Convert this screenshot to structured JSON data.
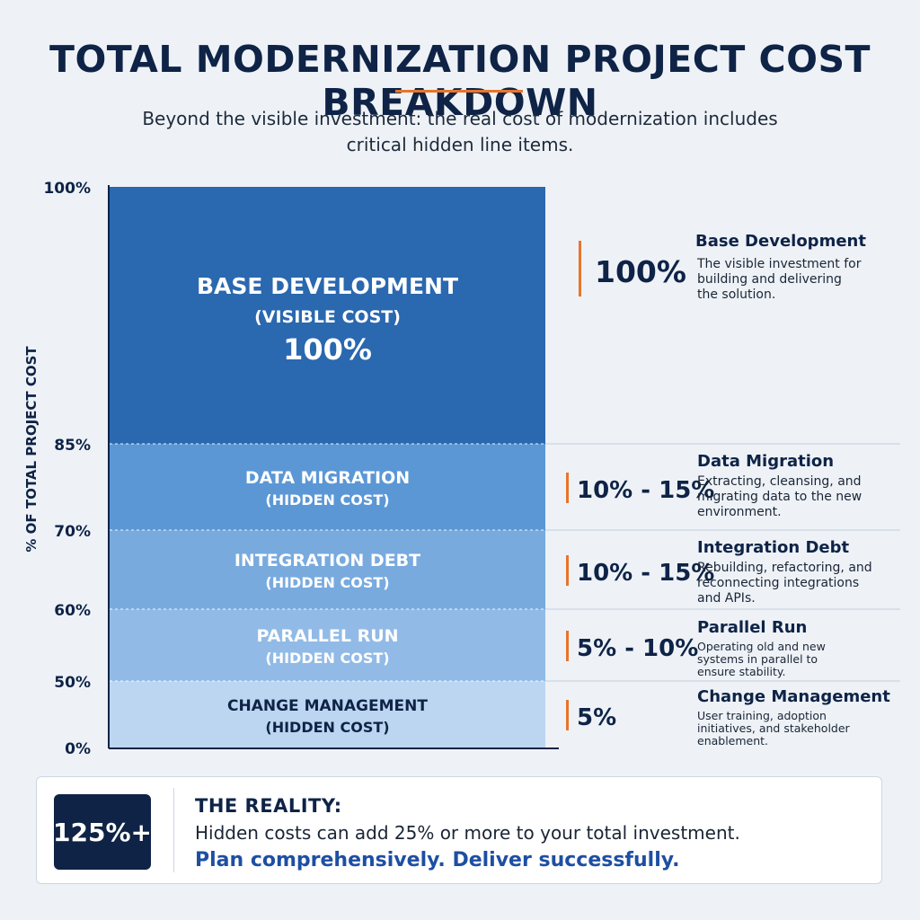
{
  "header": {
    "title": "TOTAL MODERNIZATION PROJECT COST BREAKDOWN",
    "subtitle_line1": "Beyond the visible investment: the real cost of modernization includes",
    "subtitle_line2": "critical hidden line items."
  },
  "colors": {
    "accent": "#e8752a",
    "navy": "#0e2346",
    "cta_blue": "#1d4fa3"
  },
  "chart_data": {
    "type": "bar",
    "stacked": true,
    "ylabel": "% OF TOTAL PROJECT COST",
    "yticks": [
      "0%",
      "50%",
      "60%",
      "70%",
      "85%",
      "100%"
    ],
    "segments": [
      {
        "name": "BASE DEVELOPMENT",
        "tag": "(VISIBLE COST)",
        "inner_value": "100%",
        "from": 85,
        "to": 100,
        "color": "#2a68b0",
        "text_color": "#ffffff",
        "range_label": "100%",
        "callout_title": "Base Development",
        "callout_desc": [
          "The visible investment for",
          "building and delivering",
          "the solution."
        ]
      },
      {
        "name": "DATA MIGRATION",
        "tag": "(HIDDEN COST)",
        "from": 70,
        "to": 85,
        "color": "#5b97d5",
        "text_color": "#ffffff",
        "range_label": "10% - 15%",
        "callout_title": "Data Migration",
        "callout_desc": [
          "Extracting, cleansing, and",
          "migrating data to the new",
          "environment."
        ]
      },
      {
        "name": "INTEGRATION DEBT",
        "tag": "(HIDDEN COST)",
        "from": 60,
        "to": 70,
        "color": "#78aade",
        "text_color": "#ffffff",
        "range_label": "10% - 15%",
        "callout_title": "Integration Debt",
        "callout_desc": [
          "Rebuilding, refactoring, and",
          "reconnecting integrations",
          "and APIs."
        ]
      },
      {
        "name": "PARALLEL RUN",
        "tag": "(HIDDEN COST)",
        "from": 50,
        "to": 60,
        "color": "#91bbe6",
        "text_color": "#ffffff",
        "range_label": "5% - 10%",
        "callout_title": "Parallel Run",
        "callout_desc": [
          "Operating old and new",
          "systems in parallel to",
          "ensure stability."
        ]
      },
      {
        "name": "CHANGE MANAGEMENT",
        "tag": "(HIDDEN COST)",
        "from": 0,
        "to": 50,
        "color": "#bcd6f1",
        "text_color": "#0e2346",
        "range_label": "5%",
        "callout_title": "Change Management",
        "callout_desc": [
          "User training, adoption",
          "initiatives, and stakeholder",
          "enablement."
        ]
      }
    ]
  },
  "reality": {
    "badge": "125%+",
    "heading": "THE REALITY:",
    "text": "Hidden costs can add 25% or more to your total investment.",
    "cta": "Plan comprehensively. Deliver successfully."
  }
}
